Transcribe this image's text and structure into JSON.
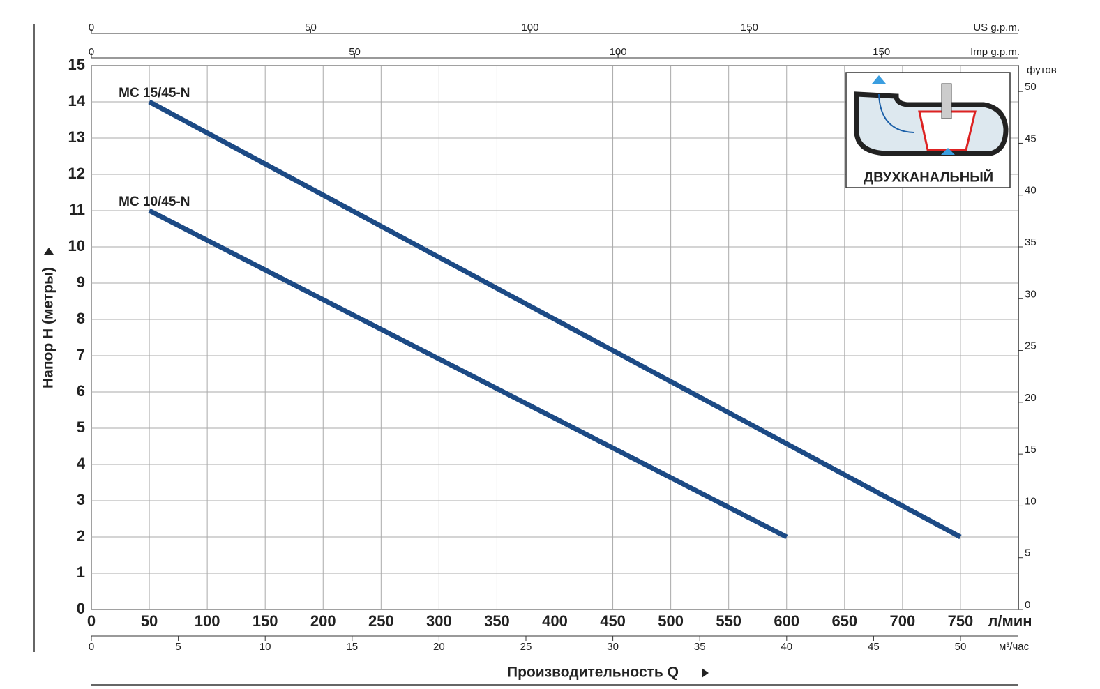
{
  "chart_data": {
    "type": "line",
    "y_title": "Напор H (метры)",
    "x_title": "Производительность Q",
    "x_unit": "л/мин",
    "xlim": [
      0,
      800
    ],
    "xticks": [
      0,
      50,
      100,
      150,
      200,
      250,
      300,
      350,
      400,
      450,
      500,
      550,
      600,
      650,
      700,
      750
    ],
    "ylim": [
      0,
      15
    ],
    "yticks": [
      0,
      1,
      2,
      3,
      4,
      5,
      6,
      7,
      8,
      9,
      10,
      11,
      12,
      13,
      14,
      15
    ],
    "y2_unit": "футов",
    "y2lim": [
      0,
      52.5
    ],
    "y2ticks": [
      0,
      5,
      10,
      15,
      20,
      25,
      30,
      35,
      40,
      45,
      50
    ],
    "top_axes": [
      {
        "unit": "US g.p.m.",
        "xlim": [
          0,
          211.3
        ],
        "xticks": [
          0,
          50,
          100,
          150
        ]
      },
      {
        "unit": "Imp g.p.m.",
        "xlim": [
          0,
          176
        ],
        "xticks": [
          0,
          50,
          100,
          150
        ]
      }
    ],
    "bottom_axis": {
      "unit": "м³/час",
      "xlim": [
        0,
        53.33
      ],
      "xticks": [
        0,
        5,
        10,
        15,
        20,
        25,
        30,
        35,
        40,
        45,
        50
      ]
    },
    "grid": true,
    "series": [
      {
        "name": "MC 15/45-N",
        "color": "#1c4a85",
        "x": [
          50,
          750
        ],
        "values": [
          14,
          2
        ]
      },
      {
        "name": "MC 10/45-N",
        "color": "#1c4a85",
        "x": [
          50,
          600
        ],
        "values": [
          11,
          2
        ]
      }
    ],
    "annotation": "ДВУХКАНАЛЬНЫЙ"
  }
}
